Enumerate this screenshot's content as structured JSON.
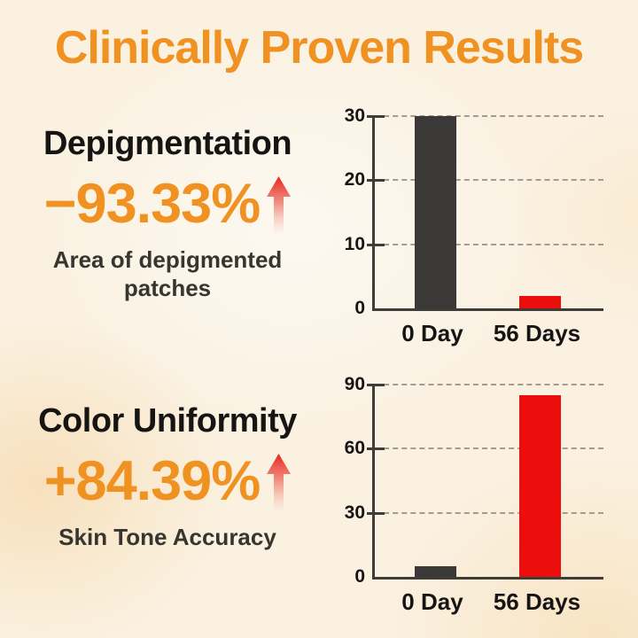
{
  "title": "Clinically Proven Results",
  "sections": [
    {
      "heading": "Depigmentation",
      "stat": "−93.33%",
      "description": "Area of depigmented patches"
    },
    {
      "heading": "Color Uniformity",
      "stat": "+84.39%",
      "description": "Skin Tone Accuracy"
    }
  ],
  "icons": {
    "stat_trend": "up-arrow"
  },
  "colors": {
    "accent_orange": "#ef9221",
    "arrow_red": "#e8231b",
    "bar_dark": "#3a3937",
    "bar_red": "#ec0d0d",
    "heading_dark": "#161513",
    "subtext": "#36352f",
    "axis": "#3f3d3a",
    "grid": "#a19d93",
    "background": "#faf1e1"
  },
  "chart_data": [
    {
      "type": "bar",
      "title": "",
      "categories": [
        "0 Day",
        "56 Days"
      ],
      "values": [
        30,
        2
      ],
      "bar_colors": [
        "#3a3937",
        "#ec0d0d"
      ],
      "ylim": [
        0,
        30
      ],
      "yticks": [
        0,
        10,
        20,
        30
      ],
      "grid": true,
      "legend": false,
      "xlabel": "",
      "ylabel": ""
    },
    {
      "type": "bar",
      "title": "",
      "categories": [
        "0 Day",
        "56 Days"
      ],
      "values": [
        5,
        85
      ],
      "bar_colors": [
        "#3a3937",
        "#ec0d0d"
      ],
      "ylim": [
        0,
        90
      ],
      "yticks": [
        0,
        30,
        60,
        90
      ],
      "grid": true,
      "legend": false,
      "xlabel": "",
      "ylabel": ""
    }
  ]
}
